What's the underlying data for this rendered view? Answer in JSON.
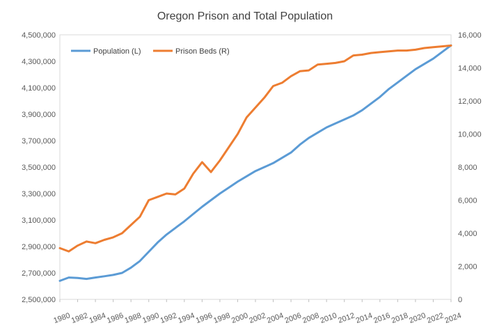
{
  "chart_data": {
    "type": "line",
    "title": "Oregon Prison and Total Population",
    "xlabel": "",
    "ylabel_left": "",
    "ylabel_right": "",
    "x": [
      1980,
      1981,
      1982,
      1983,
      1984,
      1985,
      1986,
      1987,
      1988,
      1989,
      1990,
      1991,
      1992,
      1993,
      1994,
      1995,
      1996,
      1997,
      1998,
      1999,
      2000,
      2001,
      2002,
      2003,
      2004,
      2005,
      2006,
      2007,
      2008,
      2009,
      2010,
      2011,
      2012,
      2013,
      2014,
      2015,
      2016,
      2017,
      2018,
      2019,
      2020,
      2021,
      2022,
      2023,
      2024
    ],
    "x_tick_labels": [
      "1980",
      "1982",
      "1984",
      "1986",
      "1988",
      "1990",
      "1992",
      "1994",
      "1996",
      "1998",
      "2000",
      "2002",
      "2004",
      "2006",
      "2008",
      "2010",
      "2012",
      "2014",
      "2016",
      "2018",
      "2020",
      "2022",
      "2024"
    ],
    "y_left_ticks": [
      "2,500,000",
      "2,700,000",
      "2,900,000",
      "3,100,000",
      "3,300,000",
      "3,500,000",
      "3,700,000",
      "3,900,000",
      "4,100,000",
      "4,300,000",
      "4,500,000"
    ],
    "y_right_ticks": [
      "0",
      "2,000",
      "4,000",
      "6,000",
      "8,000",
      "10,000",
      "12,000",
      "14,000",
      "16,000"
    ],
    "ylim_left": [
      2500000,
      4500000
    ],
    "ylim_right": [
      0,
      16000
    ],
    "grid": false,
    "legend_placement": "top-left",
    "series": [
      {
        "name": "Population (L)",
        "axis": "left",
        "color": "#5B9BD5",
        "values": [
          2640000,
          2665000,
          2662000,
          2655000,
          2665000,
          2675000,
          2685000,
          2700000,
          2740000,
          2790000,
          2860000,
          2930000,
          2990000,
          3040000,
          3090000,
          3145000,
          3200000,
          3250000,
          3300000,
          3345000,
          3390000,
          3430000,
          3470000,
          3500000,
          3530000,
          3570000,
          3610000,
          3670000,
          3720000,
          3760000,
          3800000,
          3830000,
          3860000,
          3890000,
          3930000,
          3980000,
          4030000,
          4090000,
          4140000,
          4190000,
          4240000,
          4280000,
          4320000,
          4370000,
          4420000
        ]
      },
      {
        "name": "Prison Beds (R)",
        "axis": "right",
        "color": "#ED7D31",
        "values": [
          3100,
          2900,
          3250,
          3500,
          3400,
          3600,
          3750,
          4000,
          4500,
          5000,
          6000,
          6200,
          6400,
          6350,
          6700,
          7600,
          8300,
          7700,
          8400,
          9200,
          10000,
          11000,
          11600,
          12200,
          12900,
          13100,
          13500,
          13800,
          13850,
          14200,
          14250,
          14300,
          14400,
          14750,
          14800,
          14900,
          14950,
          15000,
          15050,
          15050,
          15100,
          15200,
          15250,
          15300,
          15350
        ]
      }
    ]
  }
}
